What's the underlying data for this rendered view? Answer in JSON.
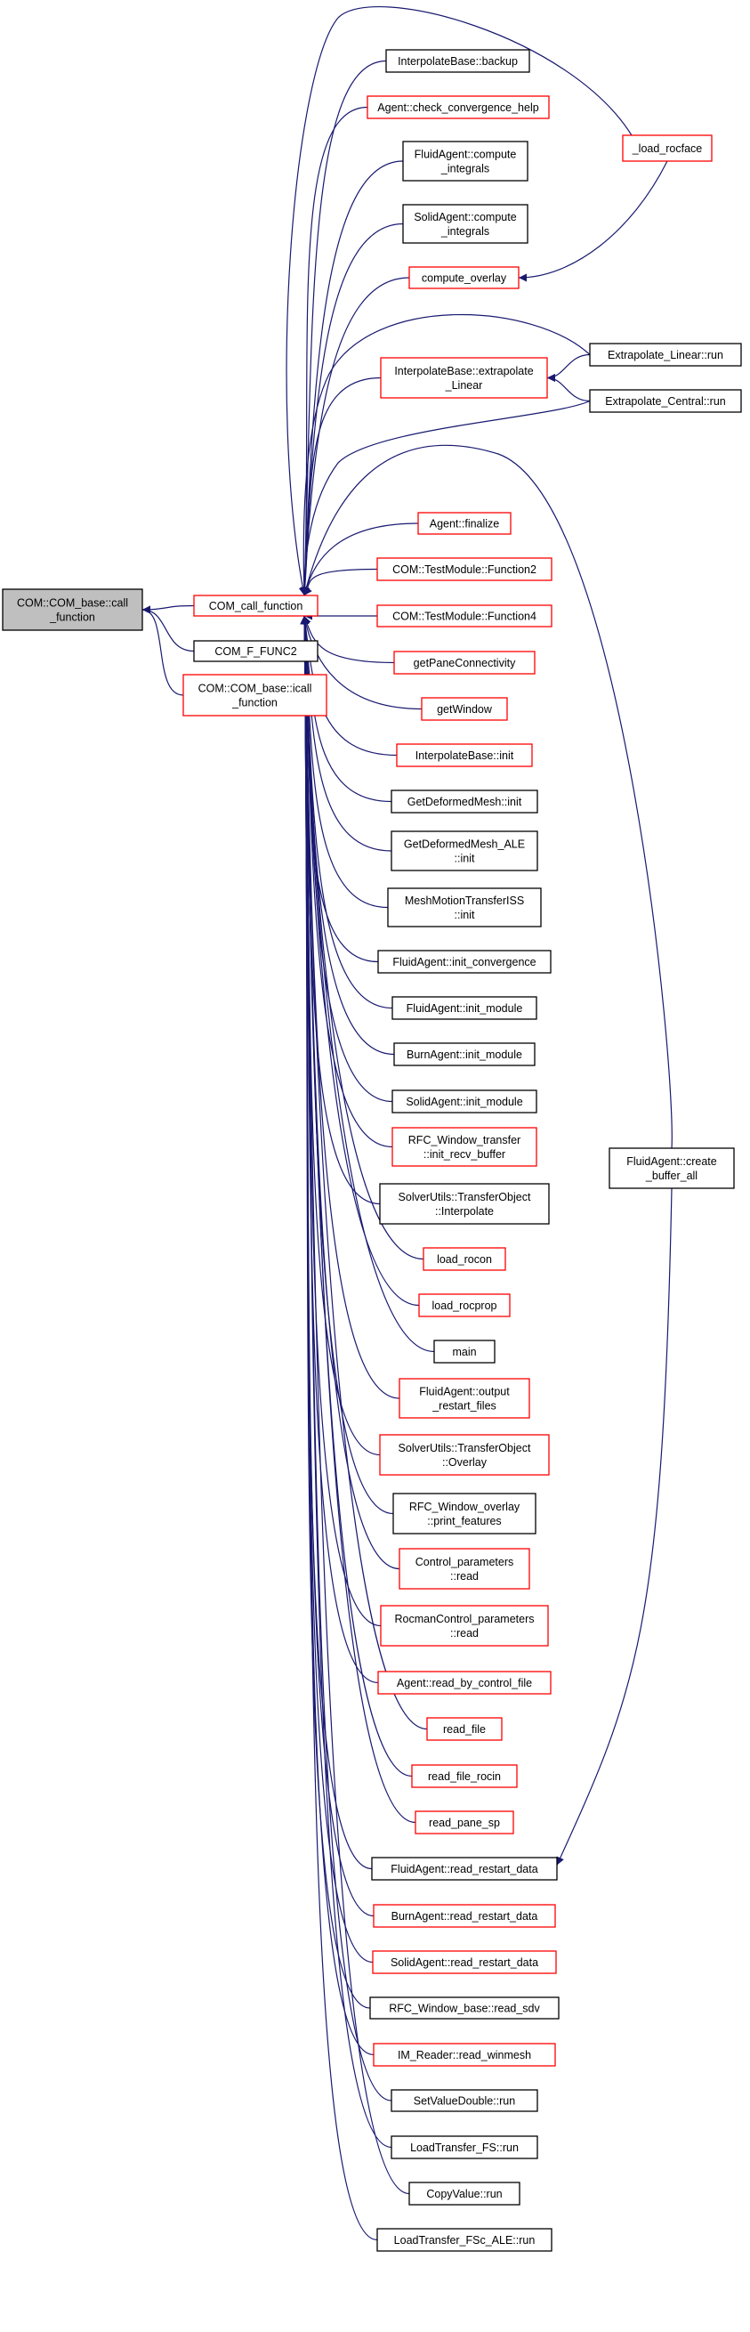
{
  "colors": {
    "edge": "#191970",
    "node_black": "#000000",
    "node_red": "#ff0000",
    "root_fill": "#bfbfbf"
  },
  "nodes": [
    {
      "id": "root",
      "lines": [
        "COM::COM_base::call",
        "_function"
      ],
      "style": "root"
    },
    {
      "id": "com_call_function",
      "lines": [
        "COM_call_function"
      ],
      "style": "red"
    },
    {
      "id": "com_f_func2",
      "lines": [
        "COM_F_FUNC2"
      ],
      "style": "black"
    },
    {
      "id": "icall_function",
      "lines": [
        "COM::COM_base::icall",
        "_function"
      ],
      "style": "red"
    },
    {
      "id": "interp_backup",
      "lines": [
        "InterpolateBase::backup"
      ],
      "style": "black"
    },
    {
      "id": "check_conv_help",
      "lines": [
        "Agent::check_convergence_help"
      ],
      "style": "red"
    },
    {
      "id": "fluid_compute_integrals",
      "lines": [
        "FluidAgent::compute",
        "_integrals"
      ],
      "style": "black"
    },
    {
      "id": "solid_compute_integrals",
      "lines": [
        "SolidAgent::compute",
        "_integrals"
      ],
      "style": "black"
    },
    {
      "id": "compute_overlay",
      "lines": [
        "compute_overlay"
      ],
      "style": "red"
    },
    {
      "id": "load_rocface",
      "lines": [
        "_load_rocface"
      ],
      "style": "red"
    },
    {
      "id": "interp_extrapolate",
      "lines": [
        "InterpolateBase::extrapolate",
        "_Linear"
      ],
      "style": "red"
    },
    {
      "id": "extrap_linear_run",
      "lines": [
        "Extrapolate_Linear::run"
      ],
      "style": "black"
    },
    {
      "id": "extrap_central_run",
      "lines": [
        "Extrapolate_Central::run"
      ],
      "style": "black"
    },
    {
      "id": "agent_finalize",
      "lines": [
        "Agent::finalize"
      ],
      "style": "red"
    },
    {
      "id": "testmodule_function2",
      "lines": [
        "COM::TestModule::Function2"
      ],
      "style": "red"
    },
    {
      "id": "testmodule_function4",
      "lines": [
        "COM::TestModule::Function4"
      ],
      "style": "red"
    },
    {
      "id": "get_pane_connectivity",
      "lines": [
        "getPaneConnectivity"
      ],
      "style": "red"
    },
    {
      "id": "get_window",
      "lines": [
        "getWindow"
      ],
      "style": "red"
    },
    {
      "id": "interp_init",
      "lines": [
        "InterpolateBase::init"
      ],
      "style": "red"
    },
    {
      "id": "get_deformed_mesh_init",
      "lines": [
        "GetDeformedMesh::init"
      ],
      "style": "black"
    },
    {
      "id": "get_deformed_mesh_ale_init",
      "lines": [
        "GetDeformedMesh_ALE",
        "::init"
      ],
      "style": "black"
    },
    {
      "id": "mesh_motion_transfer_init",
      "lines": [
        "MeshMotionTransferISS",
        "::init"
      ],
      "style": "black"
    },
    {
      "id": "fluid_init_convergence",
      "lines": [
        "FluidAgent::init_convergence"
      ],
      "style": "black"
    },
    {
      "id": "fluid_init_module",
      "lines": [
        "FluidAgent::init_module"
      ],
      "style": "black"
    },
    {
      "id": "burn_init_module",
      "lines": [
        "BurnAgent::init_module"
      ],
      "style": "black"
    },
    {
      "id": "solid_init_module",
      "lines": [
        "SolidAgent::init_module"
      ],
      "style": "black"
    },
    {
      "id": "rfc_window_transfer_init",
      "lines": [
        "RFC_Window_transfer",
        "::init_recv_buffer"
      ],
      "style": "red"
    },
    {
      "id": "transfer_object_interpolate",
      "lines": [
        "SolverUtils::TransferObject",
        "::Interpolate"
      ],
      "style": "black"
    },
    {
      "id": "load_rocon",
      "lines": [
        "load_rocon"
      ],
      "style": "red"
    },
    {
      "id": "load_rocprop",
      "lines": [
        "load_rocprop"
      ],
      "style": "red"
    },
    {
      "id": "main",
      "lines": [
        "main"
      ],
      "style": "black"
    },
    {
      "id": "fluid_output_restart",
      "lines": [
        "FluidAgent::output",
        "_restart_files"
      ],
      "style": "red"
    },
    {
      "id": "transfer_object_overlay",
      "lines": [
        "SolverUtils::TransferObject",
        "::Overlay"
      ],
      "style": "red"
    },
    {
      "id": "rfc_window_overlay_print",
      "lines": [
        "RFC_Window_overlay",
        "::print_features"
      ],
      "style": "black"
    },
    {
      "id": "control_parameters_read",
      "lines": [
        "Control_parameters",
        "::read"
      ],
      "style": "red"
    },
    {
      "id": "rocman_control_read",
      "lines": [
        "RocmanControl_parameters",
        "::read"
      ],
      "style": "red"
    },
    {
      "id": "agent_read_by_control_file",
      "lines": [
        "Agent::read_by_control_file"
      ],
      "style": "red"
    },
    {
      "id": "read_file",
      "lines": [
        "read_file"
      ],
      "style": "red"
    },
    {
      "id": "read_file_rocin",
      "lines": [
        "read_file_rocin"
      ],
      "style": "red"
    },
    {
      "id": "read_pane_sp",
      "lines": [
        "read_pane_sp"
      ],
      "style": "red"
    },
    {
      "id": "fluid_read_restart",
      "lines": [
        "FluidAgent::read_restart_data"
      ],
      "style": "black"
    },
    {
      "id": "fluid_create_buffer",
      "lines": [
        "FluidAgent::create",
        "_buffer_all"
      ],
      "style": "black"
    },
    {
      "id": "burn_read_restart",
      "lines": [
        "BurnAgent::read_restart_data"
      ],
      "style": "red"
    },
    {
      "id": "solid_read_restart",
      "lines": [
        "SolidAgent::read_restart_data"
      ],
      "style": "red"
    },
    {
      "id": "rfc_window_base_read_sdv",
      "lines": [
        "RFC_Window_base::read_sdv"
      ],
      "style": "black"
    },
    {
      "id": "im_reader_read_winmesh",
      "lines": [
        "IM_Reader::read_winmesh"
      ],
      "style": "red"
    },
    {
      "id": "set_value_double_run",
      "lines": [
        "SetValueDouble::run"
      ],
      "style": "black"
    },
    {
      "id": "load_transfer_fs_run",
      "lines": [
        "LoadTransfer_FS::run"
      ],
      "style": "black"
    },
    {
      "id": "copy_value_run",
      "lines": [
        "CopyValue::run"
      ],
      "style": "black"
    },
    {
      "id": "load_transfer_fsc_ale_run",
      "lines": [
        "LoadTransfer_FSc_ALE::run"
      ],
      "style": "black"
    }
  ],
  "edges": [
    [
      "com_call_function",
      "root"
    ],
    [
      "com_f_func2",
      "root"
    ],
    [
      "icall_function",
      "root"
    ],
    [
      "interp_backup",
      "com_call_function"
    ],
    [
      "check_conv_help",
      "com_call_function"
    ],
    [
      "fluid_compute_integrals",
      "com_call_function"
    ],
    [
      "solid_compute_integrals",
      "com_call_function"
    ],
    [
      "compute_overlay",
      "com_call_function"
    ],
    [
      "load_rocface",
      "compute_overlay"
    ],
    [
      "load_rocface",
      "com_call_function"
    ],
    [
      "interp_extrapolate",
      "com_call_function"
    ],
    [
      "extrap_linear_run",
      "interp_extrapolate"
    ],
    [
      "extrap_central_run",
      "interp_extrapolate"
    ],
    [
      "extrap_linear_run",
      "com_call_function"
    ],
    [
      "extrap_central_run",
      "com_call_function"
    ],
    [
      "agent_finalize",
      "com_call_function"
    ],
    [
      "testmodule_function2",
      "com_call_function"
    ],
    [
      "testmodule_function4",
      "com_call_function"
    ],
    [
      "get_pane_connectivity",
      "com_call_function"
    ],
    [
      "get_window",
      "com_call_function"
    ],
    [
      "interp_init",
      "com_call_function"
    ],
    [
      "get_deformed_mesh_init",
      "com_call_function"
    ],
    [
      "get_deformed_mesh_ale_init",
      "com_call_function"
    ],
    [
      "mesh_motion_transfer_init",
      "com_call_function"
    ],
    [
      "fluid_init_convergence",
      "com_call_function"
    ],
    [
      "fluid_init_module",
      "com_call_function"
    ],
    [
      "burn_init_module",
      "com_call_function"
    ],
    [
      "solid_init_module",
      "com_call_function"
    ],
    [
      "rfc_window_transfer_init",
      "com_call_function"
    ],
    [
      "transfer_object_interpolate",
      "com_call_function"
    ],
    [
      "load_rocon",
      "com_call_function"
    ],
    [
      "load_rocprop",
      "com_call_function"
    ],
    [
      "main",
      "com_call_function"
    ],
    [
      "fluid_output_restart",
      "com_call_function"
    ],
    [
      "transfer_object_overlay",
      "com_call_function"
    ],
    [
      "rfc_window_overlay_print",
      "com_call_function"
    ],
    [
      "control_parameters_read",
      "com_call_function"
    ],
    [
      "rocman_control_read",
      "com_call_function"
    ],
    [
      "agent_read_by_control_file",
      "com_call_function"
    ],
    [
      "read_file",
      "com_call_function"
    ],
    [
      "read_file_rocin",
      "com_call_function"
    ],
    [
      "read_pane_sp",
      "com_call_function"
    ],
    [
      "fluid_read_restart",
      "com_call_function"
    ],
    [
      "fluid_create_buffer",
      "fluid_read_restart"
    ],
    [
      "fluid_create_buffer",
      "com_call_function"
    ],
    [
      "burn_read_restart",
      "com_call_function"
    ],
    [
      "solid_read_restart",
      "com_call_function"
    ],
    [
      "rfc_window_base_read_sdv",
      "com_call_function"
    ],
    [
      "im_reader_read_winmesh",
      "com_call_function"
    ],
    [
      "set_value_double_run",
      "com_call_function"
    ],
    [
      "load_transfer_fs_run",
      "com_call_function"
    ],
    [
      "copy_value_run",
      "com_call_function"
    ],
    [
      "load_transfer_fsc_ale_run",
      "com_call_function"
    ]
  ]
}
